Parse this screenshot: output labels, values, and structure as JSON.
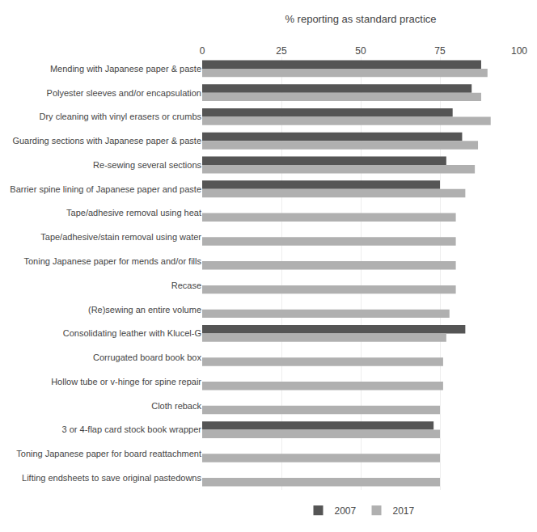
{
  "chart_data": {
    "type": "bar",
    "orientation": "horizontal",
    "xlabel": "% reporting as standard practice",
    "categories": [
      "Mending with Japanese paper & paste",
      "Polyester sleeves and/or encapsulation",
      "Dry cleaning with vinyl erasers or crumbs",
      "Guarding sections with Japanese paper & paste",
      "Re-sewing several sections",
      "Barrier spine lining of Japanese paper and paste",
      "Tape/adhesive removal using heat",
      "Tape/adhesive/stain removal using water",
      "Toning Japanese paper for mends and/or fills",
      "Recase",
      "(Re)sewing an entire volume",
      "Consolidating leather with Klucel-G",
      "Corrugated board book box",
      "Hollow tube or v-hinge for spine repair",
      "Cloth reback",
      "3 or 4-flap card stock book wrapper",
      "Toning Japanese paper for board reattachment",
      "Lifting endsheets to save original pastedowns"
    ],
    "series": [
      {
        "name": "2007",
        "color": "#555555",
        "values": [
          88,
          85,
          79,
          82,
          77,
          75,
          null,
          null,
          null,
          null,
          null,
          83,
          null,
          null,
          null,
          73,
          null,
          null
        ]
      },
      {
        "name": "2017",
        "color": "#b0b0b0",
        "values": [
          90,
          88,
          91,
          87,
          86,
          83,
          80,
          80,
          80,
          80,
          78,
          77,
          76,
          76,
          75,
          75,
          75,
          75
        ]
      }
    ],
    "xlim": [
      0,
      100
    ],
    "xticks": [
      0,
      25,
      50,
      75,
      100
    ],
    "grid": true,
    "legend": "bottom"
  }
}
